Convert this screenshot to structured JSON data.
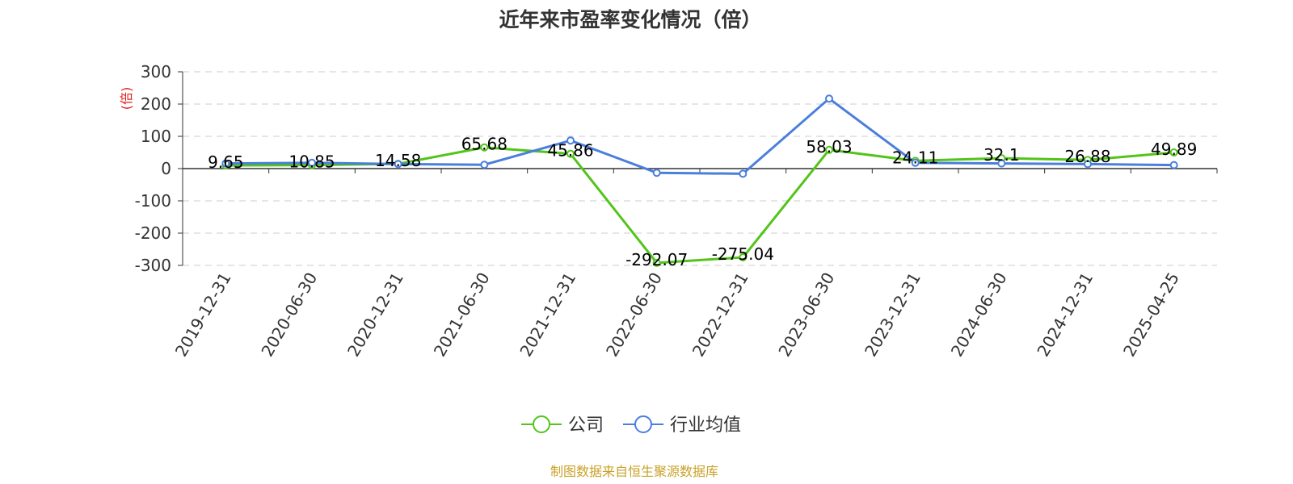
{
  "chart_data": {
    "type": "line",
    "title": "近年来市盈率变化情况（倍）",
    "ylabel": "(倍)",
    "ylim": [
      -300,
      300
    ],
    "yticks": [
      300,
      200,
      100,
      0,
      -100,
      -200,
      -300
    ],
    "grid": true,
    "legend_position": "bottom",
    "categories": [
      "2019-12-31",
      "2020-06-30",
      "2020-12-31",
      "2021-06-30",
      "2021-12-31",
      "2022-06-30",
      "2022-12-31",
      "2023-06-30",
      "2023-12-31",
      "2024-06-30",
      "2024-12-31",
      "2025-04-25"
    ],
    "series": [
      {
        "name": "公司",
        "color": "#52c41a",
        "values": [
          9.65,
          10.85,
          14.58,
          65.68,
          45.86,
          -292.07,
          -275.04,
          58.03,
          24.11,
          32.1,
          26.88,
          49.89
        ],
        "labels": [
          "9.65",
          "10.85",
          "14.58",
          "65.68",
          "45.86",
          "-292.07",
          "-275.04",
          "58.03",
          "24.11",
          "32.1",
          "26.88",
          "49.89"
        ]
      },
      {
        "name": "行业均值",
        "color": "#4a7fdc",
        "values": [
          16,
          18,
          14,
          12,
          87,
          -13,
          -16,
          217,
          18,
          16,
          14,
          11
        ]
      }
    ]
  },
  "source": "制图数据来自恒生聚源数据库",
  "colors": {
    "axis": "#333333",
    "grid": "#cccccc",
    "ylabel": "#e02020",
    "source": "#c9a227"
  }
}
